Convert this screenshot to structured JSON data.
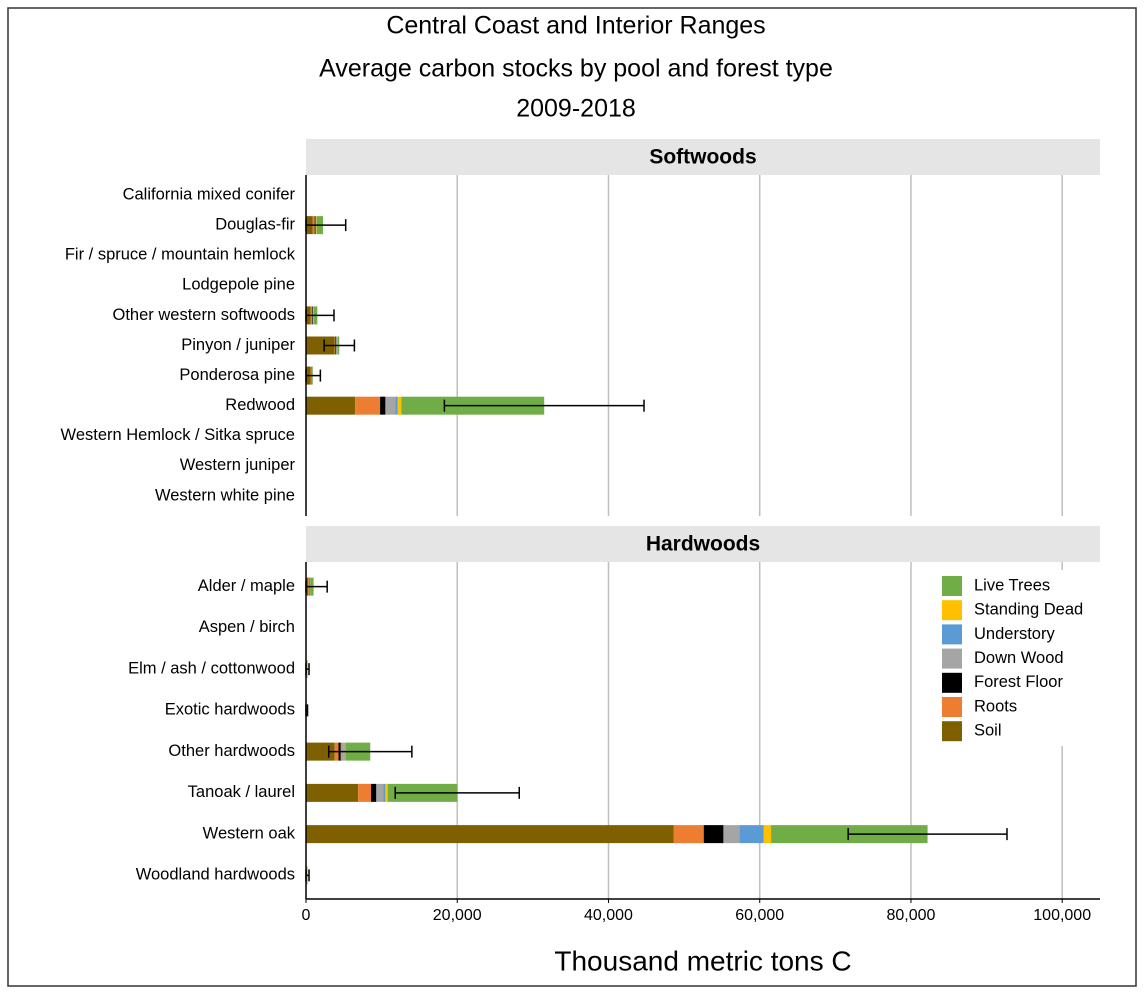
{
  "chart_data": {
    "type": "bar",
    "orientation": "horizontal",
    "stacked": true,
    "title": [
      "Central Coast and Interior Ranges",
      "Average carbon stocks by pool and forest type",
      "2009-2018"
    ],
    "xlabel": "Thousand metric tons C",
    "xlim": [
      0,
      105000
    ],
    "xticks": [
      0,
      {
        "value": 20000,
        "label": "20,000"
      },
      {
        "value": 40000,
        "label": "40,000"
      },
      {
        "value": 60000,
        "label": "60,000"
      },
      {
        "value": 80000,
        "label": "80,000"
      },
      {
        "value": 100000,
        "label": "100,000"
      }
    ],
    "grid": true,
    "legend": "upper right",
    "series": [
      {
        "name": "Soil",
        "color": "#7f6000"
      },
      {
        "name": "Roots",
        "color": "#ed7d31"
      },
      {
        "name": "Forest Floor",
        "color": "#000000"
      },
      {
        "name": "Down Wood",
        "color": "#a5a5a5"
      },
      {
        "name": "Understory",
        "color": "#5b9bd5"
      },
      {
        "name": "Standing Dead",
        "color": "#ffc000"
      },
      {
        "name": "Live Trees",
        "color": "#70ad47"
      }
    ],
    "panels": [
      {
        "title": "Softwoods",
        "categories": [
          "California mixed conifer",
          "Douglas-fir",
          "Fir / spruce / mountain hemlock",
          "Lodgepole pine",
          "Other western softwoods",
          "Pinyon / juniper",
          "Ponderosa pine",
          "Redwood",
          "Western Hemlock / Sitka spruce",
          "Western juniper",
          "Western white pine"
        ],
        "series": [
          {
            "values": [
              0,
              900,
              0,
              0,
              600,
              3800,
              600,
              6500,
              0,
              0,
              0
            ]
          },
          {
            "values": [
              0,
              250,
              0,
              0,
              200,
              100,
              100,
              3300,
              0,
              0,
              0
            ]
          },
          {
            "values": [
              0,
              100,
              0,
              0,
              100,
              100,
              50,
              700,
              0,
              0,
              0
            ]
          },
          {
            "values": [
              0,
              100,
              0,
              0,
              50,
              150,
              50,
              1300,
              0,
              0,
              0
            ]
          },
          {
            "values": [
              0,
              0,
              0,
              0,
              0,
              50,
              0,
              300,
              0,
              0,
              0
            ]
          },
          {
            "values": [
              0,
              50,
              0,
              0,
              50,
              0,
              0,
              500,
              0,
              0,
              0
            ]
          },
          {
            "values": [
              0,
              850,
              0,
              0,
              500,
              200,
              100,
              18900,
              0,
              0,
              0
            ]
          }
        ],
        "errors": [
          null,
          3000,
          null,
          null,
          2200,
          2000,
          1000,
          13200,
          null,
          null,
          null
        ]
      },
      {
        "title": "Hardwoods",
        "categories": [
          "Alder / maple",
          "Aspen / birch",
          "Elm / ash / cottonwood",
          "Exotic hardwoods",
          "Other hardwoods",
          "Tanoak / laurel",
          "Western oak",
          "Woodland hardwoods"
        ],
        "series": [
          {
            "values": [
              300,
              0,
              100,
              50,
              3800,
              6900,
              48600,
              100
            ]
          },
          {
            "values": [
              150,
              0,
              0,
              0,
              500,
              1700,
              4000,
              0
            ]
          },
          {
            "values": [
              50,
              0,
              0,
              0,
              300,
              700,
              2600,
              0
            ]
          },
          {
            "values": [
              50,
              0,
              0,
              0,
              400,
              900,
              2100,
              0
            ]
          },
          {
            "values": [
              0,
              0,
              0,
              0,
              100,
              300,
              3200,
              0
            ]
          },
          {
            "values": [
              0,
              0,
              0,
              0,
              100,
              300,
              1000,
              0
            ]
          },
          {
            "values": [
              450,
              0,
              100,
              50,
              3300,
              9200,
              20700,
              100
            ]
          }
        ],
        "errors": [
          1800,
          null,
          200,
          100,
          5500,
          8200,
          10500,
          200
        ]
      }
    ]
  }
}
